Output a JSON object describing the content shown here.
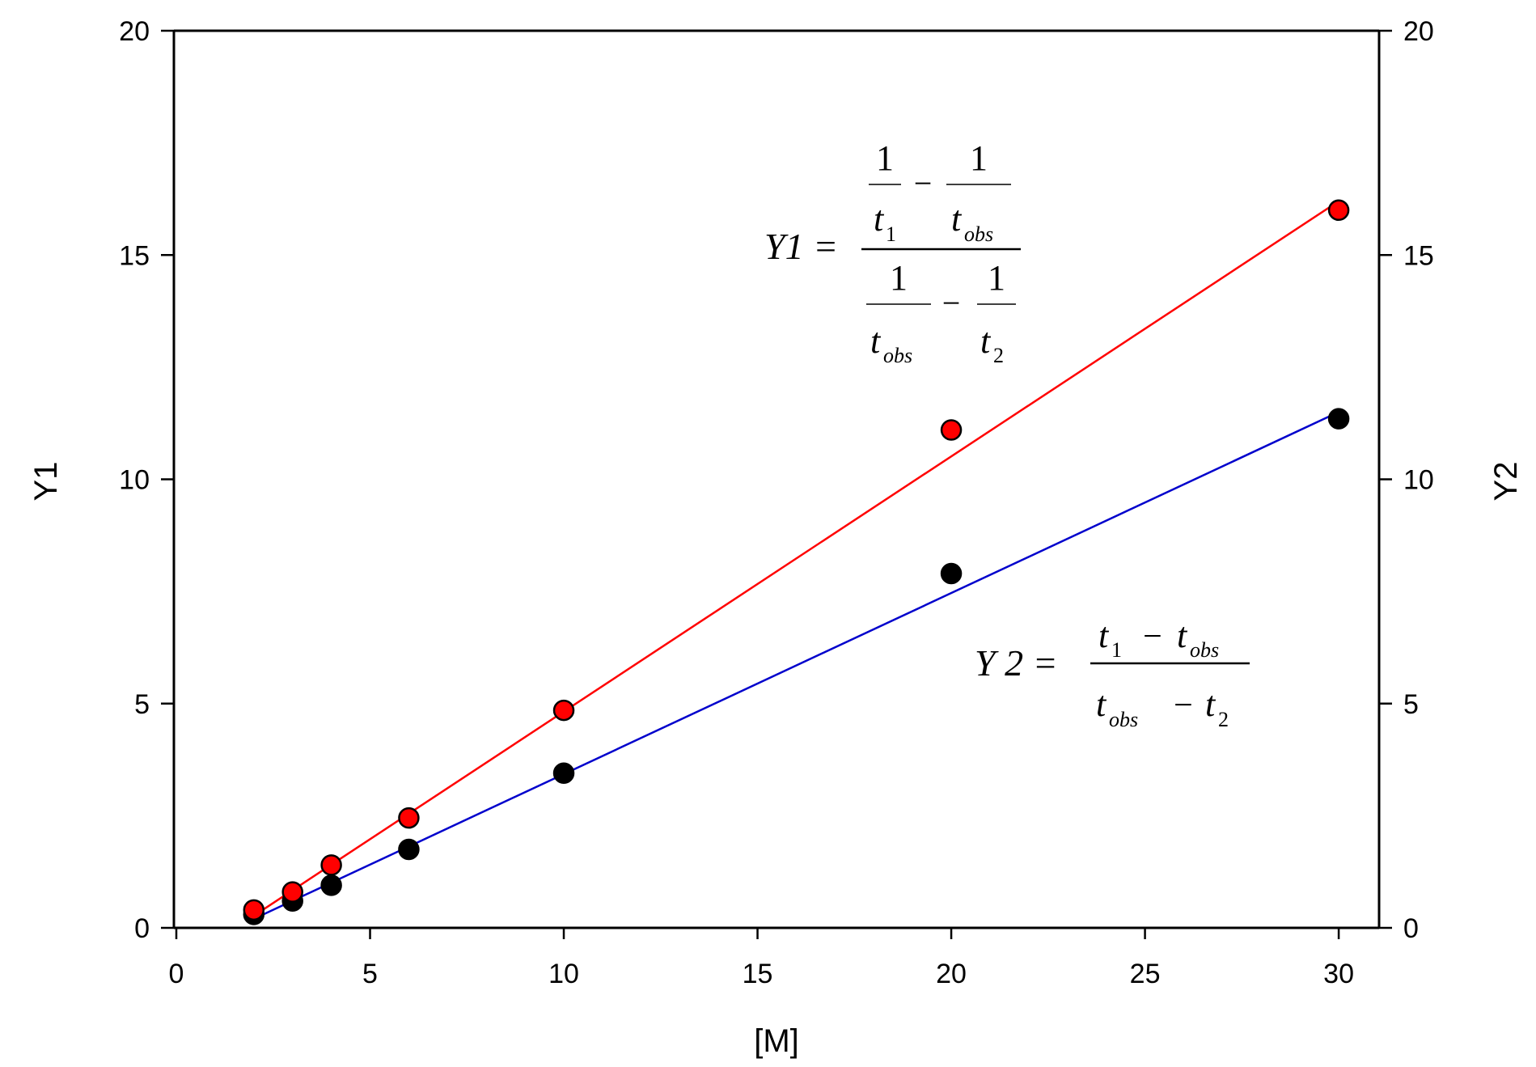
{
  "chart_data": {
    "type": "scatter",
    "xlabel": "[M]",
    "ylabel": "Y1",
    "y2label": "Y2",
    "xlim": [
      0,
      31
    ],
    "ylim": [
      0,
      20
    ],
    "y2lim": [
      0,
      20
    ],
    "x_ticks": [
      0,
      5,
      10,
      15,
      20,
      25,
      30
    ],
    "y_ticks": [
      0,
      5,
      10,
      15,
      20
    ],
    "y2_ticks": [
      0,
      5,
      10,
      15,
      20
    ],
    "grid": false,
    "series": [
      {
        "key": "y1",
        "axis": "left",
        "marker_color": "#ff0000",
        "line_color": "#ff0000",
        "x": [
          2,
          3,
          4,
          6,
          10,
          20,
          30
        ],
        "y": [
          0.4,
          0.8,
          1.4,
          2.45,
          4.85,
          11.1,
          16.0
        ],
        "fit": {
          "x": [
            2,
            30
          ],
          "y": [
            0.27,
            16.2
          ]
        }
      },
      {
        "key": "y2",
        "axis": "right",
        "marker_color": "#000000",
        "line_color": "#0000cc",
        "x": [
          2,
          3,
          4,
          6,
          10,
          20,
          30
        ],
        "y": [
          0.3,
          0.6,
          0.95,
          1.75,
          3.45,
          7.9,
          11.35
        ],
        "fit": {
          "x": [
            2,
            30
          ],
          "y": [
            0.2,
            11.5
          ]
        }
      }
    ],
    "annotations": {
      "y1_equation": {
        "lhs": "Y1 =",
        "num_left_top": "1",
        "num_left_bottom": "t",
        "num_left_sub": "1",
        "minus": "−",
        "num_right_top": "1",
        "num_right_bottom": "t",
        "num_right_sub": "obs",
        "den_left_top": "1",
        "den_left_bottom": "t",
        "den_left_sub": "obs",
        "den_right_top": "1",
        "den_right_bottom": "t",
        "den_right_sub": "2"
      },
      "y2_equation": {
        "lhs": "Y 2 =",
        "num_a": "t",
        "num_a_sub": "1",
        "num_minus": "−",
        "num_b": "t",
        "num_b_sub": "obs",
        "den_a": "t",
        "den_a_sub": "obs",
        "den_minus": "−",
        "den_b": "t",
        "den_b_sub": "2"
      }
    }
  }
}
